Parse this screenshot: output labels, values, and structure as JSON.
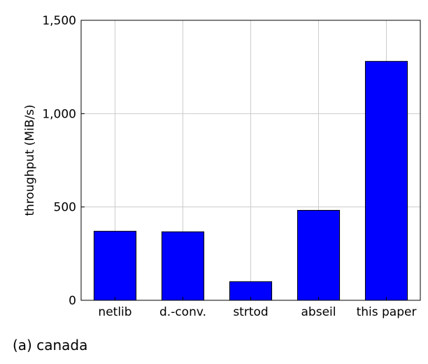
{
  "caption": "(a) canada",
  "chart_data": {
    "type": "bar",
    "categories": [
      "netlib",
      "d.-conv.",
      "strtod",
      "abseil",
      "this paper"
    ],
    "values": [
      370,
      367,
      100,
      482,
      1280
    ],
    "ylabel": "throughput (MiB/s)",
    "xlabel": "",
    "ylim": [
      0,
      1500
    ],
    "yticks": [
      0,
      500,
      1000,
      1500
    ],
    "ytick_labels": [
      "0",
      "500",
      "1,000",
      "1,500"
    ],
    "grid": true,
    "bar_color": "#0000ff",
    "bar_edge_color": "#000000",
    "grid_color": "#cccccc"
  }
}
